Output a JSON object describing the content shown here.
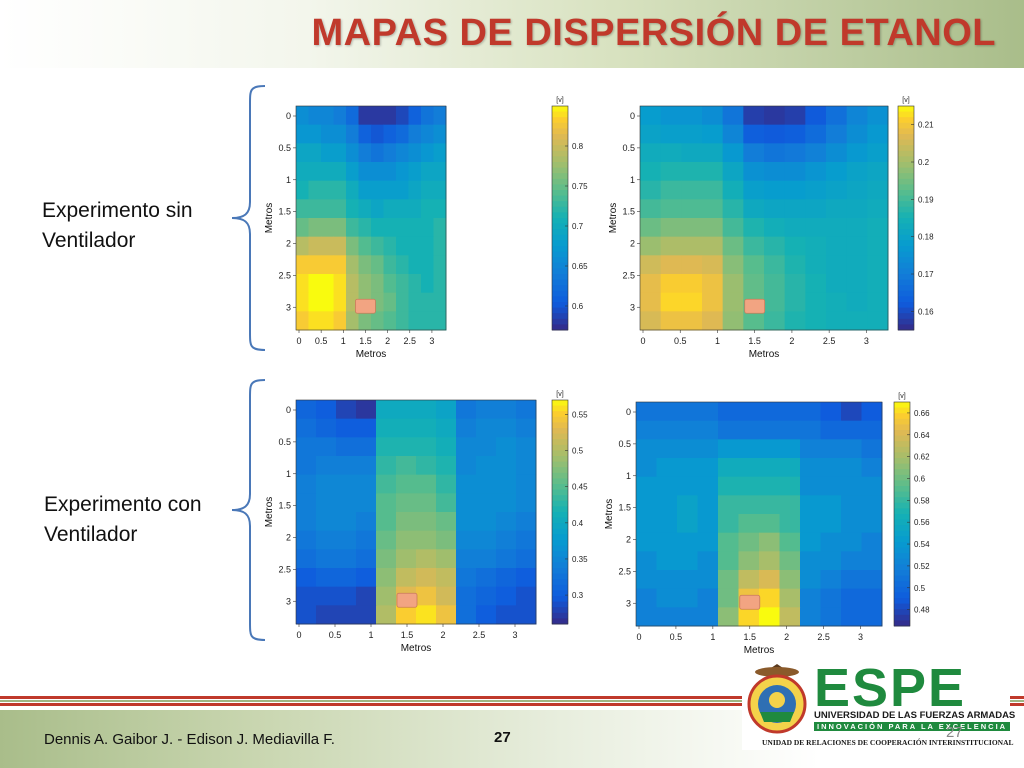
{
  "title": "MAPAS DE DISPERSIÓN DE ETANOL",
  "row_labels": {
    "sin": [
      "Experimento sin",
      "Ventilador"
    ],
    "con": [
      "Experimento con",
      "Ventilador"
    ]
  },
  "footer": {
    "authors": "Dennis A. Gaibor J.  -  Edison J. Mediavilla F.",
    "page_number": "27",
    "page_number_ghost": "27"
  },
  "logo": {
    "name": "ESPE",
    "university": "UNIVERSIDAD DE LAS FUERZAS ARMADAS",
    "motto": "INNOVACIÓN PARA LA EXCELENCIA",
    "unit": "UNIDAD DE RELACIONES DE COOPERACIÓN INTERINSTITUCIONAL",
    "seal_text": "ESCUELA POLITÉCNICA DEL EJÉRCITO · ECUADOR"
  },
  "colors": {
    "title": "#c0392b",
    "espe_green": "#1f8a3e",
    "marker": "#f2a482"
  },
  "chart_data": [
    {
      "type": "heatmap",
      "xlabel": "Metros",
      "ylabel": "Metros",
      "x_ticks": [
        "0",
        "0.5",
        "1",
        "1.5",
        "2",
        "2.5",
        "3"
      ],
      "y_ticks": [
        "0",
        "0.5",
        "1",
        "1.5",
        "2",
        "2.5",
        "3"
      ],
      "colorbar_unit": "[v]",
      "colorbar_range": [
        0.57,
        0.85
      ],
      "colorbar_ticks": [
        0.6,
        0.65,
        0.7,
        0.75,
        0.8
      ],
      "grid": [
        [
          0.66,
          0.65,
          0.65,
          0.64,
          0.62,
          0.58,
          0.58,
          0.58,
          0.59,
          0.61,
          0.63,
          0.64
        ],
        [
          0.67,
          0.67,
          0.66,
          0.66,
          0.64,
          0.61,
          0.6,
          0.61,
          0.62,
          0.64,
          0.65,
          0.66
        ],
        [
          0.69,
          0.69,
          0.68,
          0.68,
          0.66,
          0.64,
          0.63,
          0.64,
          0.65,
          0.66,
          0.67,
          0.68
        ],
        [
          0.7,
          0.7,
          0.7,
          0.7,
          0.68,
          0.66,
          0.66,
          0.66,
          0.67,
          0.68,
          0.69,
          0.69
        ],
        [
          0.71,
          0.72,
          0.72,
          0.72,
          0.7,
          0.68,
          0.68,
          0.68,
          0.68,
          0.69,
          0.7,
          0.7
        ],
        [
          0.73,
          0.73,
          0.73,
          0.73,
          0.71,
          0.7,
          0.69,
          0.7,
          0.7,
          0.7,
          0.71,
          0.71
        ],
        [
          0.75,
          0.76,
          0.76,
          0.76,
          0.73,
          0.72,
          0.71,
          0.71,
          0.71,
          0.71,
          0.71,
          0.72
        ],
        [
          0.79,
          0.8,
          0.8,
          0.8,
          0.76,
          0.74,
          0.73,
          0.72,
          0.71,
          0.71,
          0.71,
          0.72
        ],
        [
          0.83,
          0.83,
          0.83,
          0.83,
          0.78,
          0.76,
          0.75,
          0.73,
          0.72,
          0.71,
          0.71,
          0.72
        ],
        [
          0.84,
          0.85,
          0.85,
          0.84,
          0.79,
          0.77,
          0.76,
          0.74,
          0.73,
          0.72,
          0.71,
          0.72
        ],
        [
          0.84,
          0.85,
          0.85,
          0.84,
          0.79,
          0.77,
          0.76,
          0.75,
          0.73,
          0.72,
          0.72,
          0.72
        ],
        [
          0.83,
          0.84,
          0.84,
          0.83,
          0.78,
          0.76,
          0.75,
          0.74,
          0.73,
          0.72,
          0.72,
          0.72
        ]
      ],
      "source_marker": {
        "x": 1.5,
        "y": 3.0
      }
    },
    {
      "type": "heatmap",
      "xlabel": "Metros",
      "ylabel": "Metros",
      "x_ticks": [
        "0",
        "0.5",
        "1",
        "1.5",
        "2",
        "2.5",
        "3"
      ],
      "y_ticks": [
        "0",
        "0.5",
        "1",
        "1.5",
        "2",
        "2.5",
        "3"
      ],
      "colorbar_unit": "[v]",
      "colorbar_range": [
        0.155,
        0.215
      ],
      "colorbar_ticks": [
        0.16,
        0.17,
        0.18,
        0.19,
        0.2,
        0.21
      ],
      "grid": [
        [
          0.178,
          0.176,
          0.176,
          0.174,
          0.168,
          0.158,
          0.157,
          0.158,
          0.162,
          0.167,
          0.172,
          0.175
        ],
        [
          0.18,
          0.179,
          0.179,
          0.178,
          0.172,
          0.163,
          0.162,
          0.163,
          0.166,
          0.17,
          0.174,
          0.177
        ],
        [
          0.183,
          0.183,
          0.182,
          0.182,
          0.177,
          0.17,
          0.168,
          0.169,
          0.171,
          0.174,
          0.177,
          0.179
        ],
        [
          0.185,
          0.186,
          0.186,
          0.186,
          0.181,
          0.175,
          0.174,
          0.174,
          0.176,
          0.178,
          0.18,
          0.181
        ],
        [
          0.187,
          0.189,
          0.189,
          0.189,
          0.184,
          0.179,
          0.178,
          0.178,
          0.179,
          0.18,
          0.181,
          0.182
        ],
        [
          0.19,
          0.191,
          0.191,
          0.191,
          0.187,
          0.182,
          0.181,
          0.181,
          0.181,
          0.182,
          0.182,
          0.183
        ],
        [
          0.194,
          0.196,
          0.196,
          0.196,
          0.19,
          0.186,
          0.184,
          0.183,
          0.183,
          0.183,
          0.183,
          0.184
        ],
        [
          0.199,
          0.201,
          0.201,
          0.201,
          0.194,
          0.189,
          0.187,
          0.185,
          0.184,
          0.183,
          0.183,
          0.184
        ],
        [
          0.205,
          0.207,
          0.207,
          0.206,
          0.197,
          0.192,
          0.189,
          0.186,
          0.184,
          0.183,
          0.183,
          0.184
        ],
        [
          0.208,
          0.211,
          0.211,
          0.209,
          0.199,
          0.193,
          0.19,
          0.187,
          0.185,
          0.183,
          0.183,
          0.184
        ],
        [
          0.208,
          0.212,
          0.212,
          0.209,
          0.199,
          0.193,
          0.19,
          0.187,
          0.185,
          0.184,
          0.183,
          0.184
        ],
        [
          0.206,
          0.209,
          0.209,
          0.207,
          0.198,
          0.192,
          0.189,
          0.186,
          0.185,
          0.184,
          0.184,
          0.184
        ]
      ],
      "source_marker": {
        "x": 1.5,
        "y": 3.0
      }
    },
    {
      "type": "heatmap",
      "xlabel": "Metros",
      "ylabel": "Metros",
      "x_ticks": [
        "0",
        "0.5",
        "1",
        "1.5",
        "2",
        "2.5",
        "3"
      ],
      "y_ticks": [
        "0",
        "0.5",
        "1",
        "1.5",
        "2",
        "2.5",
        "3"
      ],
      "colorbar_unit": "[v]",
      "colorbar_range": [
        0.26,
        0.57
      ],
      "colorbar_ticks": [
        0.3,
        0.35,
        0.4,
        0.45,
        0.5,
        0.55
      ],
      "grid": [
        [
          0.31,
          0.3,
          0.28,
          0.27,
          0.4,
          0.4,
          0.4,
          0.39,
          0.33,
          0.34,
          0.34,
          0.33
        ],
        [
          0.32,
          0.31,
          0.3,
          0.3,
          0.41,
          0.41,
          0.41,
          0.4,
          0.34,
          0.35,
          0.35,
          0.34
        ],
        [
          0.33,
          0.33,
          0.32,
          0.32,
          0.42,
          0.42,
          0.42,
          0.41,
          0.35,
          0.35,
          0.36,
          0.35
        ],
        [
          0.33,
          0.34,
          0.34,
          0.34,
          0.43,
          0.44,
          0.43,
          0.42,
          0.35,
          0.36,
          0.36,
          0.35
        ],
        [
          0.34,
          0.35,
          0.35,
          0.35,
          0.44,
          0.45,
          0.45,
          0.43,
          0.36,
          0.36,
          0.36,
          0.35
        ],
        [
          0.34,
          0.35,
          0.35,
          0.35,
          0.45,
          0.46,
          0.46,
          0.44,
          0.36,
          0.36,
          0.36,
          0.35
        ],
        [
          0.34,
          0.35,
          0.35,
          0.34,
          0.45,
          0.47,
          0.47,
          0.46,
          0.36,
          0.36,
          0.35,
          0.34
        ],
        [
          0.33,
          0.34,
          0.34,
          0.33,
          0.46,
          0.48,
          0.48,
          0.47,
          0.35,
          0.35,
          0.34,
          0.33
        ],
        [
          0.32,
          0.33,
          0.33,
          0.32,
          0.47,
          0.49,
          0.5,
          0.49,
          0.34,
          0.34,
          0.33,
          0.32
        ],
        [
          0.3,
          0.31,
          0.31,
          0.3,
          0.48,
          0.51,
          0.52,
          0.51,
          0.33,
          0.32,
          0.31,
          0.3
        ],
        [
          0.29,
          0.29,
          0.29,
          0.28,
          0.49,
          0.53,
          0.54,
          0.52,
          0.32,
          0.31,
          0.3,
          0.29
        ],
        [
          0.29,
          0.28,
          0.28,
          0.28,
          0.5,
          0.55,
          0.56,
          0.54,
          0.32,
          0.3,
          0.29,
          0.29
        ]
      ],
      "source_marker": {
        "x": 1.5,
        "y": 3.0
      }
    },
    {
      "type": "heatmap",
      "xlabel": "Metros",
      "ylabel": "Metros",
      "x_ticks": [
        "0",
        "0.5",
        "1",
        "1.5",
        "2",
        "2.5",
        "3"
      ],
      "y_ticks": [
        "0",
        "0.5",
        "1",
        "1.5",
        "2",
        "2.5",
        "3"
      ],
      "colorbar_unit": "[v]",
      "colorbar_range": [
        0.465,
        0.67
      ],
      "colorbar_ticks": [
        0.48,
        0.5,
        0.52,
        0.54,
        0.56,
        0.58,
        0.6,
        0.62,
        0.64,
        0.66
      ],
      "grid": [
        [
          0.51,
          0.51,
          0.51,
          0.51,
          0.5,
          0.5,
          0.5,
          0.5,
          0.5,
          0.49,
          0.48,
          0.49
        ],
        [
          0.52,
          0.52,
          0.52,
          0.52,
          0.51,
          0.51,
          0.51,
          0.51,
          0.51,
          0.5,
          0.5,
          0.5
        ],
        [
          0.53,
          0.53,
          0.53,
          0.53,
          0.54,
          0.54,
          0.54,
          0.54,
          0.52,
          0.52,
          0.52,
          0.51
        ],
        [
          0.53,
          0.54,
          0.54,
          0.54,
          0.56,
          0.56,
          0.56,
          0.56,
          0.53,
          0.53,
          0.53,
          0.52
        ],
        [
          0.54,
          0.54,
          0.54,
          0.54,
          0.57,
          0.57,
          0.57,
          0.57,
          0.53,
          0.53,
          0.53,
          0.53
        ],
        [
          0.54,
          0.54,
          0.55,
          0.54,
          0.58,
          0.58,
          0.58,
          0.58,
          0.54,
          0.54,
          0.53,
          0.53
        ],
        [
          0.54,
          0.54,
          0.55,
          0.54,
          0.58,
          0.59,
          0.59,
          0.58,
          0.54,
          0.54,
          0.53,
          0.53
        ],
        [
          0.54,
          0.54,
          0.54,
          0.54,
          0.59,
          0.6,
          0.61,
          0.59,
          0.54,
          0.53,
          0.53,
          0.52
        ],
        [
          0.53,
          0.54,
          0.54,
          0.53,
          0.59,
          0.61,
          0.62,
          0.6,
          0.53,
          0.53,
          0.52,
          0.52
        ],
        [
          0.53,
          0.53,
          0.53,
          0.53,
          0.6,
          0.63,
          0.64,
          0.61,
          0.53,
          0.52,
          0.51,
          0.51
        ],
        [
          0.52,
          0.53,
          0.53,
          0.52,
          0.6,
          0.65,
          0.66,
          0.62,
          0.52,
          0.51,
          0.5,
          0.5
        ],
        [
          0.52,
          0.52,
          0.52,
          0.52,
          0.61,
          0.66,
          0.67,
          0.63,
          0.52,
          0.51,
          0.5,
          0.5
        ]
      ],
      "source_marker": {
        "x": 1.5,
        "y": 3.0
      }
    }
  ]
}
